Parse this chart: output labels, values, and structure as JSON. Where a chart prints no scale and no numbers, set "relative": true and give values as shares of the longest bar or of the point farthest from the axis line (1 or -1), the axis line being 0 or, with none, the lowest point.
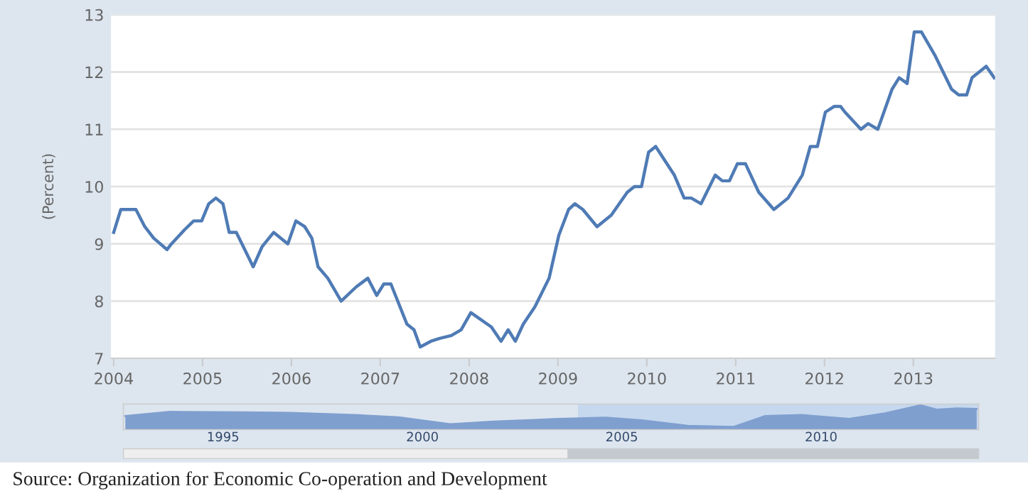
{
  "chart_data": [
    {
      "type": "line",
      "ylabel": "(Percent)",
      "xlim": [
        2003.97,
        2013.92
      ],
      "ylim": [
        7,
        13
      ],
      "xticks": [
        2004,
        2005,
        2006,
        2007,
        2008,
        2009,
        2010,
        2011,
        2012,
        2013
      ],
      "yticks": [
        7,
        8,
        9,
        10,
        11,
        12,
        13
      ],
      "grid": "y",
      "series": [
        {
          "color": "#4f7bb5",
          "x": [
            2004.0,
            2004.08,
            2004.25,
            2004.35,
            2004.45,
            2004.6,
            2004.65,
            2004.8,
            2004.9,
            2004.99,
            2005.07,
            2005.15,
            2005.23,
            2005.3,
            2005.38,
            2005.57,
            2005.67,
            2005.8,
            2005.96,
            2006.05,
            2006.15,
            2006.23,
            2006.3,
            2006.41,
            2006.56,
            2006.73,
            2006.86,
            2006.96,
            2007.04,
            2007.12,
            2007.3,
            2007.38,
            2007.45,
            2007.57,
            2007.67,
            2007.8,
            2007.91,
            2008.02,
            2008.25,
            2008.36,
            2008.44,
            2008.52,
            2008.61,
            2008.74,
            2008.9,
            2009.01,
            2009.12,
            2009.19,
            2009.28,
            2009.44,
            2009.6,
            2009.78,
            2009.86,
            2009.94,
            2010.02,
            2010.1,
            2010.31,
            2010.42,
            2010.5,
            2010.61,
            2010.77,
            2010.85,
            2010.93,
            2011.02,
            2011.11,
            2011.26,
            2011.43,
            2011.59,
            2011.75,
            2011.84,
            2011.92,
            2012.01,
            2012.11,
            2012.18,
            2012.23,
            2012.41,
            2012.49,
            2012.6,
            2012.76,
            2012.84,
            2012.93,
            2013.01,
            2013.09,
            2013.24,
            2013.43,
            2013.51,
            2013.6,
            2013.66,
            2013.82,
            2013.91
          ],
          "values": [
            9.2,
            9.6,
            9.6,
            9.3,
            9.1,
            8.9,
            9.0,
            9.25,
            9.4,
            9.4,
            9.7,
            9.8,
            9.7,
            9.2,
            9.2,
            8.6,
            8.95,
            9.2,
            9.0,
            9.4,
            9.3,
            9.1,
            8.6,
            8.4,
            8.0,
            8.25,
            8.4,
            8.1,
            8.3,
            8.3,
            7.6,
            7.5,
            7.2,
            7.3,
            7.35,
            7.4,
            7.5,
            7.8,
            7.55,
            7.3,
            7.5,
            7.3,
            7.6,
            7.9,
            8.4,
            9.15,
            9.6,
            9.7,
            9.6,
            9.3,
            9.5,
            9.9,
            10.0,
            10.0,
            10.6,
            10.7,
            10.2,
            9.8,
            9.8,
            9.7,
            10.2,
            10.1,
            10.1,
            10.4,
            10.4,
            9.9,
            9.6,
            9.8,
            10.2,
            10.7,
            10.7,
            11.3,
            11.4,
            11.4,
            11.3,
            11.0,
            11.1,
            11.0,
            11.7,
            11.9,
            11.8,
            12.7,
            12.7,
            12.3,
            11.7,
            11.6,
            11.6,
            11.9,
            12.1,
            11.9
          ]
        }
      ],
      "annotations": [
        "Source: Organization for Economic Co-operation and Development"
      ]
    },
    {
      "type": "area",
      "relative": true,
      "xlim": [
        1992.5,
        2013.95
      ],
      "xticks": [
        1995,
        2000,
        2005,
        2010
      ],
      "tick_labels": "x",
      "grid": false,
      "bands": [
        {
          "axis": "x",
          "from": 2003.9,
          "to": 2013.95,
          "color": "#c5d8ee"
        }
      ],
      "series": [
        {
          "color": "#7f9fcf",
          "x": [
            1992.55,
            1993.67,
            1995.6,
            1996.7,
            1998.3,
            1999.4,
            2000.7,
            2001.8,
            2003.4,
            2004.6,
            2005.5,
            2006.65,
            2007.8,
            2008.6,
            2009.5,
            2010.7,
            2011.6,
            2012.5,
            2012.9,
            2013.4,
            2013.9
          ],
          "values": [
            0.56,
            0.73,
            0.71,
            0.69,
            0.6,
            0.51,
            0.22,
            0.33,
            0.44,
            0.49,
            0.38,
            0.16,
            0.11,
            0.56,
            0.6,
            0.44,
            0.67,
            1.0,
            0.82,
            0.87,
            0.85
          ]
        }
      ]
    }
  ]
}
